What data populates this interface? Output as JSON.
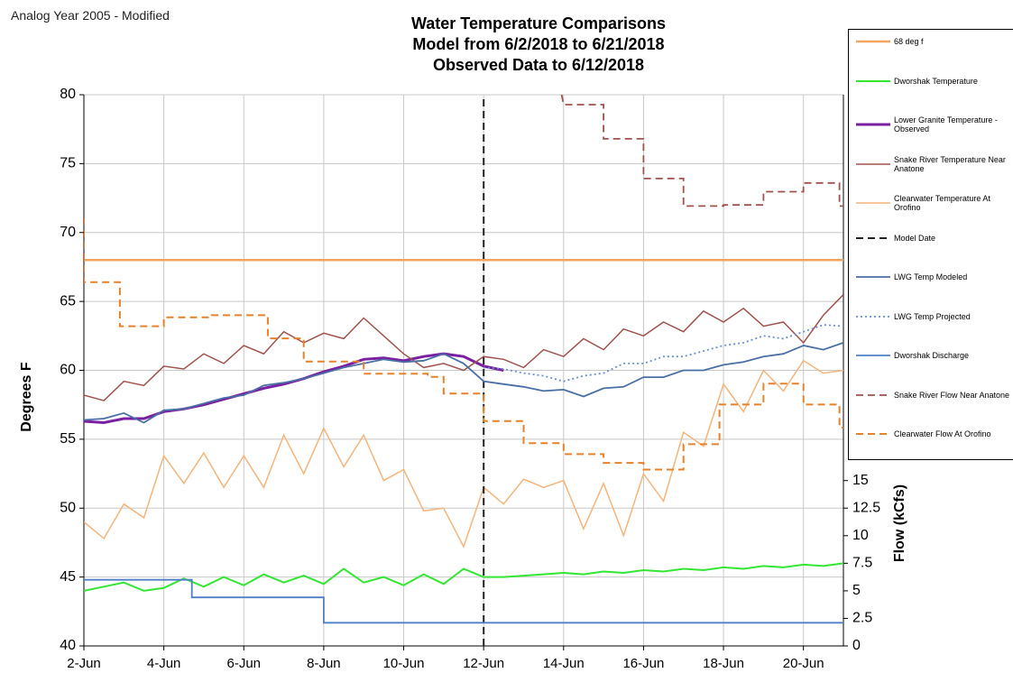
{
  "note_text": "Analog Year 2005 - Modified",
  "chart_data": {
    "type": "line",
    "title": [
      "Water Temperature Comparisons",
      "Model from 6/2/2018 to 6/21/2018",
      "Observed Data to 6/12/2018"
    ],
    "ylabel": "Degrees F",
    "y2label": "Flow (kCfs)",
    "xlim": [
      2,
      21
    ],
    "xticks": [
      {
        "value": 2,
        "label": "2-Jun"
      },
      {
        "value": 4,
        "label": "4-Jun"
      },
      {
        "value": 6,
        "label": "6-Jun"
      },
      {
        "value": 8,
        "label": "8-Jun"
      },
      {
        "value": 10,
        "label": "10-Jun"
      },
      {
        "value": 12,
        "label": "12-Jun"
      },
      {
        "value": 14,
        "label": "14-Jun"
      },
      {
        "value": 16,
        "label": "16-Jun"
      },
      {
        "value": 18,
        "label": "18-Jun"
      },
      {
        "value": 20,
        "label": "20-Jun"
      }
    ],
    "ylim": [
      40,
      80
    ],
    "yticks": [
      40,
      45,
      50,
      55,
      60,
      65,
      70,
      75,
      80
    ],
    "y2lim": [
      0,
      50
    ],
    "y2ticks": [
      0,
      2.5,
      5,
      7.5,
      10,
      12.5,
      15
    ],
    "grid": true,
    "series": [
      {
        "name": "68 deg f",
        "color": "#f4a460",
        "width": 2.5,
        "dash": "solid",
        "x": [
          2,
          21
        ],
        "values": [
          68,
          68
        ]
      },
      {
        "name": "Dworshak Temperature",
        "color": "#33e633",
        "width": 2,
        "dash": "solid",
        "x": [
          2,
          2.5,
          3,
          3.5,
          4,
          4.5,
          5,
          5.5,
          6,
          6.5,
          7,
          7.5,
          8,
          8.5,
          9,
          9.5,
          10,
          10.5,
          11,
          11.5,
          12,
          12.5,
          13,
          13.5,
          14,
          14.5,
          15,
          15.5,
          16,
          16.5,
          17,
          17.5,
          18,
          18.5,
          19,
          19.5,
          20,
          20.5,
          21
        ],
        "values": [
          44,
          44.3,
          44.6,
          44,
          44.2,
          44.9,
          44.3,
          45,
          44.4,
          45.2,
          44.6,
          45.1,
          44.5,
          45.6,
          44.6,
          45,
          44.4,
          45.2,
          44.5,
          45.6,
          45,
          45,
          45.1,
          45.2,
          45.3,
          45.2,
          45.4,
          45.3,
          45.5,
          45.4,
          45.6,
          45.5,
          45.7,
          45.6,
          45.8,
          45.7,
          45.9,
          45.8,
          46
        ]
      },
      {
        "name": "Lower Granite Temperature - Observed",
        "color": "#7b1fa2",
        "width": 3,
        "dash": "solid",
        "x": [
          2,
          2.5,
          3,
          3.5,
          4,
          4.5,
          5,
          5.5,
          6,
          6.5,
          7,
          7.5,
          8,
          8.5,
          9,
          9.5,
          10,
          10.5,
          11,
          11.5,
          12,
          12.5
        ],
        "values": [
          56.3,
          56.2,
          56.5,
          56.5,
          57,
          57.2,
          57.5,
          57.9,
          58.3,
          58.7,
          59,
          59.4,
          59.9,
          60.3,
          60.8,
          60.9,
          60.7,
          61,
          61.2,
          61,
          60.3,
          60
        ]
      },
      {
        "name": "Snake River Temperature Near Anatone",
        "color": "#a0524d",
        "width": 1.5,
        "dash": "solid",
        "x": [
          2,
          2.5,
          3,
          3.5,
          4,
          4.5,
          5,
          5.5,
          6,
          6.5,
          7,
          7.5,
          8,
          8.5,
          9,
          9.5,
          10,
          10.5,
          11,
          11.5,
          12,
          12.5,
          13,
          13.5,
          14,
          14.5,
          15,
          15.5,
          16,
          16.5,
          17,
          17.5,
          18,
          18.5,
          19,
          19.5,
          20,
          20.5,
          21
        ],
        "values": [
          58.2,
          57.8,
          59.2,
          58.9,
          60.3,
          60.1,
          61.2,
          60.5,
          61.8,
          61.2,
          62.8,
          62,
          62.7,
          62.3,
          63.8,
          62.5,
          61.2,
          60.2,
          60.5,
          60,
          61,
          60.8,
          60.2,
          61.5,
          61,
          62.3,
          61.5,
          63,
          62.5,
          63.5,
          62.8,
          64.3,
          63.5,
          64.5,
          63.2,
          63.5,
          62,
          64,
          65.5
        ]
      },
      {
        "name": "Clearwater Temperature At Orofino",
        "color": "#f5b47a",
        "width": 1.5,
        "dash": "solid",
        "x": [
          2,
          2.5,
          3,
          3.5,
          4,
          4.5,
          5,
          5.5,
          6,
          6.5,
          7,
          7.5,
          8,
          8.5,
          9,
          9.5,
          10,
          10.5,
          11,
          11.5,
          12,
          12.5,
          13,
          13.5,
          14,
          14.5,
          15,
          15.5,
          16,
          16.5,
          17,
          17.5,
          18,
          18.5,
          19,
          19.5,
          20,
          20.5,
          21
        ],
        "values": [
          49,
          47.8,
          50.3,
          49.3,
          53.8,
          51.8,
          54,
          51.5,
          53.8,
          51.5,
          55.3,
          52.5,
          55.8,
          53,
          55.3,
          52,
          52.8,
          49.8,
          50,
          47.2,
          51.5,
          50.3,
          52.1,
          51.5,
          52,
          48.5,
          51.8,
          48,
          52.5,
          50.5,
          55.5,
          54.5,
          59,
          57,
          60,
          58.5,
          60.7,
          59.8,
          60
        ]
      },
      {
        "name": "Model Date",
        "color": "#222222",
        "width": 2,
        "dash": "dashed",
        "x": [
          12,
          12
        ],
        "values": [
          40,
          80
        ]
      },
      {
        "name": "LWG Temp Modeled",
        "color": "#4a6fa5",
        "width": 1.8,
        "dash": "solid",
        "x": [
          2,
          2.5,
          3,
          3.5,
          4,
          4.5,
          5,
          5.5,
          6,
          6.5,
          7,
          7.5,
          8,
          8.5,
          9,
          9.5,
          10,
          10.5,
          11,
          11.5,
          12,
          12.5,
          13,
          13.5,
          14,
          14.5,
          15,
          15.5,
          16,
          16.5,
          17,
          17.5,
          18,
          18.5,
          19,
          19.5,
          20,
          20.5,
          21
        ],
        "values": [
          56.4,
          56.5,
          56.9,
          56.2,
          57.1,
          57.2,
          57.6,
          58,
          58.2,
          58.9,
          59.1,
          59.4,
          59.8,
          60.2,
          60.5,
          60.8,
          60.6,
          60.7,
          61.2,
          60.5,
          59.2,
          59,
          58.8,
          58.5,
          58.6,
          58.1,
          58.7,
          58.8,
          59.5,
          59.5,
          60,
          60,
          60.4,
          60.6,
          61,
          61.2,
          61.8,
          61.5,
          62
        ]
      },
      {
        "name": "LWG Temp Projected",
        "color": "#6a8fd0",
        "width": 1.8,
        "dash": "dotted",
        "x": [
          12,
          12.5,
          13,
          13.5,
          14,
          14.5,
          15,
          15.5,
          16,
          16.5,
          17,
          17.5,
          18,
          18.5,
          19,
          19.5,
          20,
          20.5,
          21
        ],
        "values": [
          60.2,
          60.1,
          59.8,
          59.6,
          59.2,
          59.6,
          59.8,
          60.5,
          60.5,
          61,
          61,
          61.4,
          61.8,
          62,
          62.5,
          62.3,
          62.8,
          63.3,
          63.2
        ]
      },
      {
        "name": "Dworshak Discharge",
        "color": "#4f7fc4",
        "width": 1.8,
        "dash": "solid",
        "axis": "y2",
        "x": [
          2,
          4.7,
          4.7,
          8,
          8,
          21
        ],
        "values": [
          6,
          6,
          4.4,
          4.4,
          2.1,
          2.1
        ]
      },
      {
        "name": "Snake River Flow Near Anatone",
        "color": "#a0524d",
        "width": 1.8,
        "dash": "dashed",
        "axis": "y2",
        "x": [
          13.95,
          14,
          15,
          15,
          16,
          16,
          17,
          17,
          18,
          18,
          19,
          19,
          20,
          20,
          20.9,
          20.9,
          21
        ],
        "values": [
          50,
          49.1,
          49.1,
          46,
          46,
          42.4,
          42.4,
          39.9,
          39.9,
          40,
          40,
          41.2,
          41.2,
          42,
          42,
          39.9,
          39.9
        ]
      },
      {
        "name": "Clearwater Flow At Orofino",
        "color": "#e8822a",
        "width": 2,
        "dash": "dashed",
        "axis": "y2",
        "x": [
          2,
          2,
          2.9,
          2.9,
          4,
          4,
          5.2,
          5.2,
          6.6,
          6.6,
          7.5,
          7.5,
          9,
          9,
          10.6,
          10.6,
          11,
          11,
          12,
          12,
          13,
          13,
          14,
          14,
          15,
          15,
          16,
          16,
          17,
          17,
          17.9,
          17.9,
          19,
          19,
          20,
          20,
          20.9,
          20.9,
          21
        ],
        "values": [
          38.8,
          33,
          33,
          29,
          29,
          29.8,
          29.8,
          30,
          30,
          27.9,
          27.9,
          25.8,
          25.8,
          24.7,
          24.7,
          24.4,
          24.4,
          22.9,
          22.9,
          20.4,
          20.4,
          18.4,
          18.4,
          17.4,
          17.4,
          16.6,
          16.6,
          16,
          16,
          18.3,
          18.3,
          21.9,
          21.9,
          23.8,
          23.8,
          21.9,
          21.9,
          19.8,
          19.8
        ]
      }
    ]
  }
}
